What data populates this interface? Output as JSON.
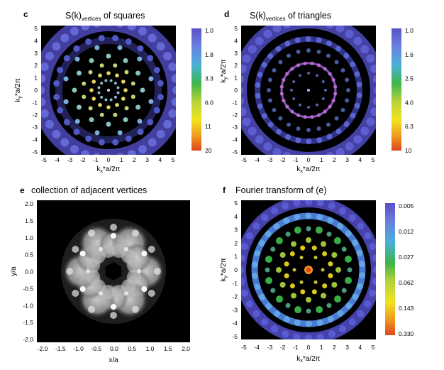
{
  "panels": [
    {
      "key": "c",
      "letter": "c",
      "title_main": "S(k)",
      "title_sub": "vertices",
      "title_rest": " of squares",
      "x_label_main": "k",
      "x_label_sub": "x",
      "x_label_rest": "*a/2π",
      "y_label_main": "k",
      "y_label_sub": "y",
      "y_label_rest": "*a/2π",
      "x_ticks": [
        "-5",
        "-4",
        "-3",
        "-2",
        "-1",
        "0",
        "1",
        "2",
        "3",
        "4",
        "5"
      ],
      "y_ticks": [
        "5",
        "4",
        "3",
        "2",
        "1",
        "0",
        "-1",
        "-2",
        "-3",
        "-4",
        "-5"
      ],
      "colorbar_ticks": [
        "1.0",
        "1.8",
        "3.3",
        "6.0",
        "11",
        "20"
      ]
    },
    {
      "key": "d",
      "letter": "d",
      "title_main": "S(k)",
      "title_sub": "vertices",
      "title_rest": " of triangles",
      "x_label_main": "k",
      "x_label_sub": "x",
      "x_label_rest": "*a/2π",
      "y_label_main": "k",
      "y_label_sub": "y",
      "y_label_rest": "*a/2π",
      "x_ticks": [
        "-5",
        "-4",
        "-3",
        "-2",
        "-1",
        "0",
        "1",
        "2",
        "3",
        "4",
        "5"
      ],
      "y_ticks": [
        "5",
        "4",
        "3",
        "2",
        "1",
        "0",
        "-1",
        "-2",
        "-3",
        "-4",
        "-5"
      ],
      "colorbar_ticks": [
        "1.0",
        "1.6",
        "2.5",
        "4.0",
        "6.3",
        "10"
      ]
    },
    {
      "key": "e",
      "letter": "e",
      "title_main": "collection of adjacent vertices",
      "x_label_main": "x/a",
      "y_label_main": "y/a",
      "x_ticks": [
        "-2.0",
        "-1.5",
        "-1.0",
        "-0.5",
        "0.0",
        "0.5",
        "1.0",
        "1.5",
        "2.0"
      ],
      "y_ticks": [
        "2.0",
        "1.5",
        "1.0",
        "0.5",
        "0.0",
        "-0.5",
        "-1.0",
        "-1.5",
        "-2.0"
      ]
    },
    {
      "key": "f",
      "letter": "f",
      "title_main": "Fourier transform of (e)",
      "x_label_main": "k",
      "x_label_sub": "x",
      "x_label_rest": "*a/2π",
      "y_label_main": "k",
      "y_label_sub": "y",
      "y_label_rest": "*a/2π",
      "x_ticks": [
        "-5",
        "-4",
        "-3",
        "-2",
        "-1",
        "0",
        "1",
        "2",
        "3",
        "4",
        "5"
      ],
      "y_ticks": [
        "5",
        "4",
        "3",
        "2",
        "1",
        "0",
        "-1",
        "-2",
        "-3",
        "-4",
        "-5"
      ],
      "colorbar_ticks": [
        "0.005",
        "0.012",
        "0.027",
        "0.062",
        "0.143",
        "0.330"
      ]
    }
  ],
  "colors": {
    "background": "#000000",
    "colormap": [
      "#5a4fc9",
      "#6a7fe0",
      "#4ab0d8",
      "#3cb54a",
      "#b8d33a",
      "#f2e21c",
      "#f09a1e",
      "#e0461e"
    ]
  }
}
